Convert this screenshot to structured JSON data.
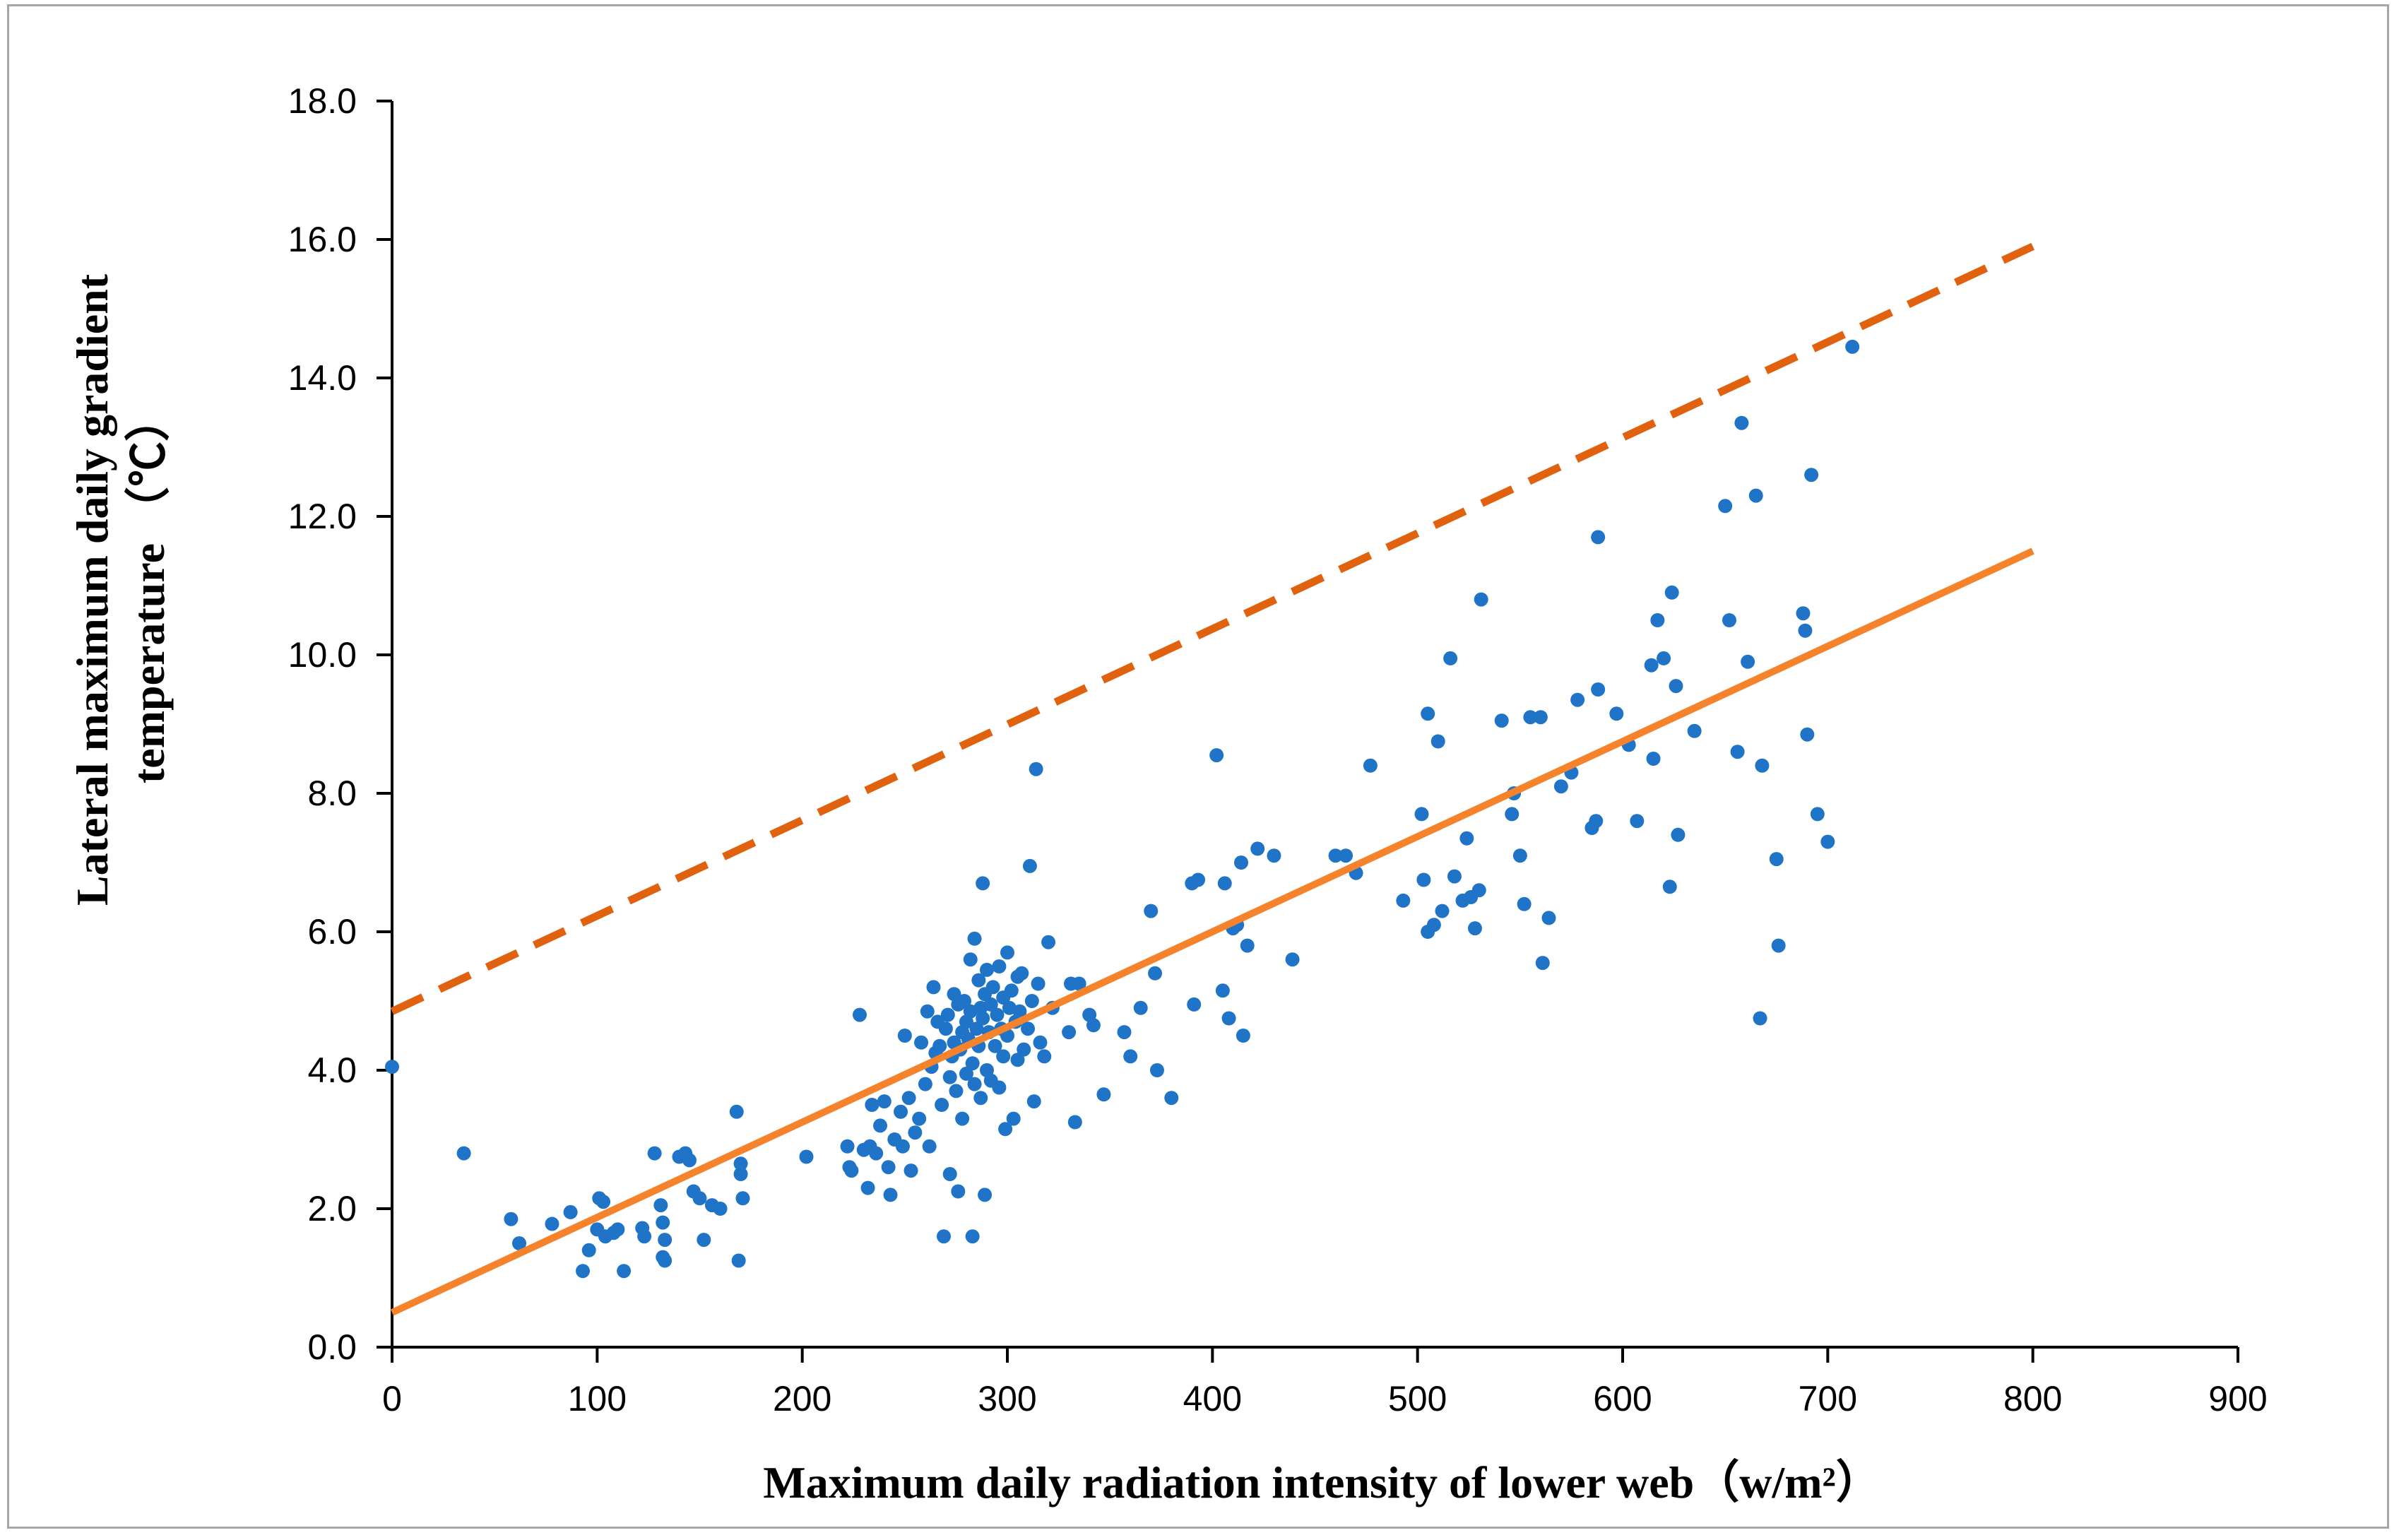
{
  "chart_data": {
    "type": "scatter",
    "title": "",
    "xlabel": "Maximum daily radiation intensity of  lower web（w/m²）",
    "ylabel_lines": [
      "Lateral maximum daily gradient",
      "temperature （℃）"
    ],
    "xlim": [
      0,
      900
    ],
    "ylim": [
      0,
      18
    ],
    "xticks": [
      0,
      100,
      200,
      300,
      400,
      500,
      600,
      700,
      800,
      900
    ],
    "xtick_labels": [
      "0",
      "100",
      "200",
      "300",
      "400",
      "500",
      "600",
      "700",
      "800",
      "900"
    ],
    "yticks": [
      0,
      2,
      4,
      6,
      8,
      10,
      12,
      14,
      16,
      18
    ],
    "ytick_labels": [
      "0.0",
      "2.0",
      "4.0",
      "6.0",
      "8.0",
      "10.0",
      "12.0",
      "14.0",
      "16.0",
      "18.0"
    ],
    "grid": false,
    "colors": {
      "points": "#1f74c8",
      "fit_line": "#f5832b",
      "upper_line": "#e1620e",
      "axis": "#000000"
    },
    "lines": [
      {
        "name": "fit",
        "style": "solid",
        "x": [
          0,
          800
        ],
        "y": [
          0.5,
          11.5
        ]
      },
      {
        "name": "upper-bound",
        "style": "dashed",
        "x": [
          0,
          800
        ],
        "y": [
          4.85,
          15.9
        ]
      }
    ],
    "points": [
      [
        0,
        4.05
      ],
      [
        35,
        2.8
      ],
      [
        58,
        1.85
      ],
      [
        62,
        1.5
      ],
      [
        78,
        1.78
      ],
      [
        87,
        1.95
      ],
      [
        93,
        1.1
      ],
      [
        96,
        1.4
      ],
      [
        100,
        1.7
      ],
      [
        101,
        2.15
      ],
      [
        103,
        2.1
      ],
      [
        104,
        1.6
      ],
      [
        108,
        1.65
      ],
      [
        110,
        1.7
      ],
      [
        113,
        1.1
      ],
      [
        122,
        1.72
      ],
      [
        123,
        1.6
      ],
      [
        128,
        2.8
      ],
      [
        131,
        2.05
      ],
      [
        132,
        1.8
      ],
      [
        132,
        1.3
      ],
      [
        133,
        1.55
      ],
      [
        133,
        1.25
      ],
      [
        140,
        2.75
      ],
      [
        143,
        2.8
      ],
      [
        145,
        2.7
      ],
      [
        147,
        2.25
      ],
      [
        150,
        2.15
      ],
      [
        152,
        1.55
      ],
      [
        156,
        2.05
      ],
      [
        160,
        2.0
      ],
      [
        168,
        3.4
      ],
      [
        169,
        1.25
      ],
      [
        170,
        2.5
      ],
      [
        170,
        2.65
      ],
      [
        171,
        2.15
      ],
      [
        202,
        2.75
      ],
      [
        222,
        2.9
      ],
      [
        223,
        2.6
      ],
      [
        224,
        2.55
      ],
      [
        228,
        4.8
      ],
      [
        230,
        2.85
      ],
      [
        232,
        2.3
      ],
      [
        233,
        2.9
      ],
      [
        234,
        3.5
      ],
      [
        236,
        2.8
      ],
      [
        238,
        3.2
      ],
      [
        240,
        3.55
      ],
      [
        242,
        2.6
      ],
      [
        243,
        2.2
      ],
      [
        245,
        3.0
      ],
      [
        248,
        3.4
      ],
      [
        249,
        2.9
      ],
      [
        250,
        4.5
      ],
      [
        252,
        3.6
      ],
      [
        253,
        2.55
      ],
      [
        255,
        3.1
      ],
      [
        257,
        3.3
      ],
      [
        258,
        4.4
      ],
      [
        260,
        3.8
      ],
      [
        261,
        4.85
      ],
      [
        262,
        2.9
      ],
      [
        263,
        4.05
      ],
      [
        264,
        5.2
      ],
      [
        265,
        4.25
      ],
      [
        266,
        4.7
      ],
      [
        267,
        4.35
      ],
      [
        268,
        3.5
      ],
      [
        269,
        1.6
      ],
      [
        270,
        4.6
      ],
      [
        271,
        4.8
      ],
      [
        272,
        3.9
      ],
      [
        272,
        2.5
      ],
      [
        273,
        4.2
      ],
      [
        274,
        5.1
      ],
      [
        274,
        4.4
      ],
      [
        275,
        3.7
      ],
      [
        276,
        4.95
      ],
      [
        276,
        2.25
      ],
      [
        277,
        4.3
      ],
      [
        278,
        4.55
      ],
      [
        278,
        3.3
      ],
      [
        279,
        5.0
      ],
      [
        280,
        4.7
      ],
      [
        280,
        3.95
      ],
      [
        281,
        4.45
      ],
      [
        282,
        5.6
      ],
      [
        282,
        4.85
      ],
      [
        283,
        1.6
      ],
      [
        283,
        4.1
      ],
      [
        284,
        5.9
      ],
      [
        284,
        3.8
      ],
      [
        285,
        4.6
      ],
      [
        286,
        5.3
      ],
      [
        286,
        4.35
      ],
      [
        287,
        4.9
      ],
      [
        287,
        3.6
      ],
      [
        288,
        6.7
      ],
      [
        288,
        4.75
      ],
      [
        289,
        2.2
      ],
      [
        289,
        5.1
      ],
      [
        290,
        4.0
      ],
      [
        290,
        5.45
      ],
      [
        291,
        4.55
      ],
      [
        292,
        3.85
      ],
      [
        292,
        4.95
      ],
      [
        293,
        5.2
      ],
      [
        294,
        4.35
      ],
      [
        295,
        4.8
      ],
      [
        296,
        5.5
      ],
      [
        296,
        3.75
      ],
      [
        297,
        4.6
      ],
      [
        298,
        5.05
      ],
      [
        298,
        4.2
      ],
      [
        299,
        3.15
      ],
      [
        300,
        5.7
      ],
      [
        300,
        4.5
      ],
      [
        301,
        4.9
      ],
      [
        302,
        5.15
      ],
      [
        303,
        3.3
      ],
      [
        304,
        4.7
      ],
      [
        305,
        5.35
      ],
      [
        305,
        4.15
      ],
      [
        306,
        4.85
      ],
      [
        307,
        5.4
      ],
      [
        308,
        4.3
      ],
      [
        310,
        4.6
      ],
      [
        311,
        6.95
      ],
      [
        312,
        5.0
      ],
      [
        313,
        3.55
      ],
      [
        314,
        8.35
      ],
      [
        315,
        5.25
      ],
      [
        316,
        4.4
      ],
      [
        318,
        4.2
      ],
      [
        320,
        5.85
      ],
      [
        322,
        4.9
      ],
      [
        330,
        4.55
      ],
      [
        331,
        5.25
      ],
      [
        333,
        3.25
      ],
      [
        335,
        5.25
      ],
      [
        340,
        4.8
      ],
      [
        342,
        4.65
      ],
      [
        347,
        3.65
      ],
      [
        357,
        4.55
      ],
      [
        360,
        4.2
      ],
      [
        365,
        4.9
      ],
      [
        370,
        6.3
      ],
      [
        372,
        5.4
      ],
      [
        373,
        4.0
      ],
      [
        380,
        3.6
      ],
      [
        390,
        6.7
      ],
      [
        391,
        4.95
      ],
      [
        393,
        6.75
      ],
      [
        402,
        8.55
      ],
      [
        405,
        5.15
      ],
      [
        406,
        6.7
      ],
      [
        408,
        4.75
      ],
      [
        410,
        6.05
      ],
      [
        412,
        6.1
      ],
      [
        414,
        7.0
      ],
      [
        415,
        4.5
      ],
      [
        417,
        5.8
      ],
      [
        422,
        7.2
      ],
      [
        430,
        7.1
      ],
      [
        439,
        5.6
      ],
      [
        460,
        7.1
      ],
      [
        465,
        7.1
      ],
      [
        470,
        6.85
      ],
      [
        477,
        8.4
      ],
      [
        493,
        6.45
      ],
      [
        502,
        7.7
      ],
      [
        503,
        6.75
      ],
      [
        505,
        6.0
      ],
      [
        505,
        9.15
      ],
      [
        508,
        6.1
      ],
      [
        510,
        8.75
      ],
      [
        512,
        6.3
      ],
      [
        516,
        9.95
      ],
      [
        518,
        6.8
      ],
      [
        522,
        6.45
      ],
      [
        524,
        7.35
      ],
      [
        526,
        6.5
      ],
      [
        528,
        6.05
      ],
      [
        530,
        6.6
      ],
      [
        531,
        10.8
      ],
      [
        541,
        9.05
      ],
      [
        546,
        7.7
      ],
      [
        547,
        8.0
      ],
      [
        550,
        7.1
      ],
      [
        552,
        6.4
      ],
      [
        555,
        9.1
      ],
      [
        560,
        9.1
      ],
      [
        561,
        5.55
      ],
      [
        564,
        6.2
      ],
      [
        570,
        8.1
      ],
      [
        575,
        8.3
      ],
      [
        578,
        9.35
      ],
      [
        585,
        7.5
      ],
      [
        587,
        7.6
      ],
      [
        588,
        9.5
      ],
      [
        588,
        11.7
      ],
      [
        597,
        9.15
      ],
      [
        603,
        8.7
      ],
      [
        607,
        7.6
      ],
      [
        614,
        9.85
      ],
      [
        615,
        8.5
      ],
      [
        617,
        10.5
      ],
      [
        620,
        9.95
      ],
      [
        623,
        6.65
      ],
      [
        624,
        10.9
      ],
      [
        626,
        9.55
      ],
      [
        627,
        7.4
      ],
      [
        635,
        8.9
      ],
      [
        650,
        12.15
      ],
      [
        652,
        10.5
      ],
      [
        656,
        8.6
      ],
      [
        658,
        13.35
      ],
      [
        661,
        9.9
      ],
      [
        665,
        12.3
      ],
      [
        667,
        4.75
      ],
      [
        668,
        8.4
      ],
      [
        675,
        7.05
      ],
      [
        676,
        5.8
      ],
      [
        688,
        10.6
      ],
      [
        689,
        10.35
      ],
      [
        690,
        8.85
      ],
      [
        692,
        12.6
      ],
      [
        695,
        7.7
      ],
      [
        700,
        7.3
      ],
      [
        712,
        14.45
      ]
    ]
  }
}
